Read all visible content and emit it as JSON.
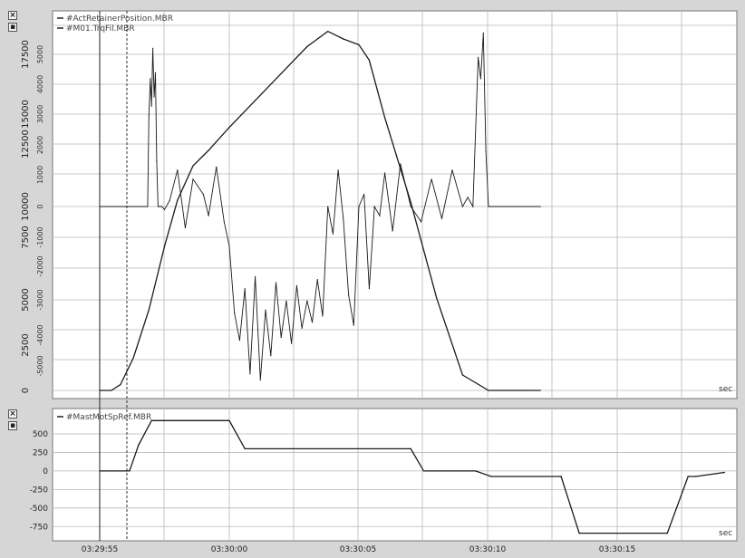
{
  "window": {
    "sec_label_top": "sec",
    "sec_label_bottom": "sec"
  },
  "panel_controls": {
    "close_glyph": "×",
    "pin_glyph": "▪"
  },
  "legend_top": [
    {
      "name": "#ActRetainerPosition.MBR",
      "color": "#222222"
    },
    {
      "name": "#M01.TrqFil.MBR",
      "color": "#222222"
    }
  ],
  "legend_bottom": [
    {
      "name": "#MastMotSpRef.MBR",
      "color": "#222222"
    }
  ],
  "colors": {
    "trace": "#1a1a1a",
    "grid": "#b8b8b8",
    "plot_bg": "#ffffff"
  },
  "chart_data": [
    {
      "type": "line",
      "panel": "top",
      "y_axis_outer_ticks": [
        "0",
        "2500",
        "5000",
        "7500",
        "10000",
        "12500",
        "15000",
        "17500"
      ],
      "y_axis_inner_ticks": [
        "-5000",
        "-4000",
        "-3000",
        "-2000",
        "-1000",
        "0",
        "1000",
        "2000",
        "3000",
        "4000",
        "5000"
      ],
      "series": [
        {
          "name": "#ActRetainerPosition.MBR",
          "axis": "outer",
          "x": [
            0.0,
            0.45,
            0.8,
            1.3,
            1.9,
            2.5,
            3.0,
            3.6,
            4.2,
            5.0,
            6.0,
            7.0,
            8.0,
            8.8,
            9.4,
            10.0,
            10.4,
            11.0,
            12.0,
            13.0,
            14.0,
            15.0,
            15.6,
            16.2,
            17.0
          ],
          "values": [
            0,
            0,
            300,
            1700,
            4200,
            7500,
            9900,
            11700,
            12500,
            13700,
            15100,
            16500,
            17900,
            18700,
            18300,
            18000,
            17200,
            14200,
            9800,
            4800,
            800,
            0,
            0,
            0,
            0
          ]
        },
        {
          "name": "#M01.TrqFil.MBR",
          "axis": "inner",
          "x": [
            0.0,
            1.0,
            1.85,
            1.9,
            1.95,
            2.0,
            2.05,
            2.1,
            2.15,
            2.2,
            2.25,
            2.3,
            2.35,
            2.4,
            2.5,
            2.7,
            3.0,
            3.3,
            3.6,
            4.0,
            4.2,
            4.5,
            4.8,
            5.0,
            5.2,
            5.4,
            5.6,
            5.8,
            6.0,
            6.2,
            6.4,
            6.6,
            6.8,
            7.0,
            7.2,
            7.4,
            7.6,
            7.8,
            8.0,
            8.2,
            8.4,
            8.6,
            8.8,
            9.0,
            9.2,
            9.4,
            9.6,
            9.8,
            10.0,
            10.2,
            10.4,
            10.6,
            10.8,
            11.0,
            11.3,
            11.6,
            12.0,
            12.4,
            12.8,
            13.2,
            13.6,
            14.0,
            14.2,
            14.4,
            14.6,
            14.7,
            14.8,
            14.9,
            15.0,
            15.1,
            15.3,
            15.6,
            16.0,
            17.0
          ],
          "values": [
            0,
            0,
            0,
            3000,
            4200,
            3300,
            5200,
            3600,
            4400,
            1500,
            0,
            0,
            0,
            0,
            -100,
            200,
            1200,
            -700,
            900,
            400,
            -300,
            1300,
            -500,
            -1300,
            -3500,
            -4400,
            -2700,
            -5500,
            -2300,
            -5700,
            -3400,
            -4900,
            -2500,
            -4300,
            -3100,
            -4500,
            -2600,
            -4000,
            -3100,
            -3800,
            -2400,
            -3600,
            0,
            -900,
            1200,
            -400,
            -2900,
            -3900,
            0,
            400,
            -2700,
            0,
            -300,
            1100,
            -800,
            1400,
            0,
            -500,
            900,
            -400,
            1200,
            0,
            300,
            0,
            4900,
            4200,
            5700,
            1800,
            0,
            0,
            0,
            0,
            0,
            0
          ]
        }
      ]
    },
    {
      "type": "line",
      "panel": "bottom",
      "y_axis_ticks": [
        "-750",
        "-500",
        "-250",
        "0",
        "250",
        "500"
      ],
      "x_axis_ticks": [
        "03:29:55",
        "03:30:00",
        "03:30:05",
        "03:30:10",
        "03:30:15"
      ],
      "ylim": [
        -820,
        720
      ],
      "series": [
        {
          "name": "#MastMotSpRef.MBR",
          "x": [
            0.0,
            1.15,
            1.5,
            2.0,
            5.0,
            5.6,
            12.0,
            12.5,
            14.5,
            15.1,
            17.8,
            18.5,
            21.9,
            22.7,
            23.0,
            24.1
          ],
          "values": [
            0,
            0,
            350,
            680,
            680,
            300,
            300,
            0,
            0,
            -75,
            -75,
            -840,
            -840,
            -75,
            -75,
            -20
          ]
        }
      ]
    }
  ]
}
